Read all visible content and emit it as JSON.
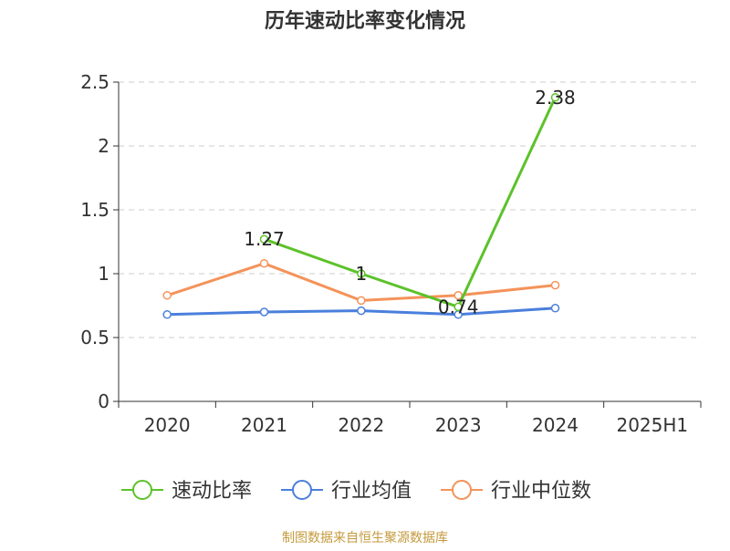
{
  "chart_data": {
    "type": "line",
    "title": "历年速动比率变化情况",
    "categories": [
      "2020",
      "2021",
      "2022",
      "2023",
      "2024",
      "2025H1"
    ],
    "ylim": [
      0,
      2.5
    ],
    "yticks": [
      0,
      0.5,
      1,
      1.5,
      2,
      2.5
    ],
    "ytick_labels": [
      "0",
      "0.5",
      "1",
      "1.5",
      "2",
      "2.5"
    ],
    "grid": true,
    "legend_position": "bottom",
    "series": [
      {
        "name": "速动比率",
        "color": "#5cc22a",
        "values": [
          null,
          1.27,
          1,
          0.74,
          2.38,
          null
        ],
        "labels": [
          "",
          "1.27",
          "1",
          "0.74",
          "2.38",
          ""
        ]
      },
      {
        "name": "行业均值",
        "color": "#4a7fdc",
        "values": [
          0.68,
          0.7,
          0.71,
          0.68,
          0.73,
          null
        ]
      },
      {
        "name": "行业中位数",
        "color": "#f4935a",
        "values": [
          0.83,
          1.08,
          0.79,
          0.83,
          0.91,
          null
        ]
      }
    ],
    "source": "制图数据来自恒生聚源数据库",
    "source_color": "#c49a3c"
  }
}
